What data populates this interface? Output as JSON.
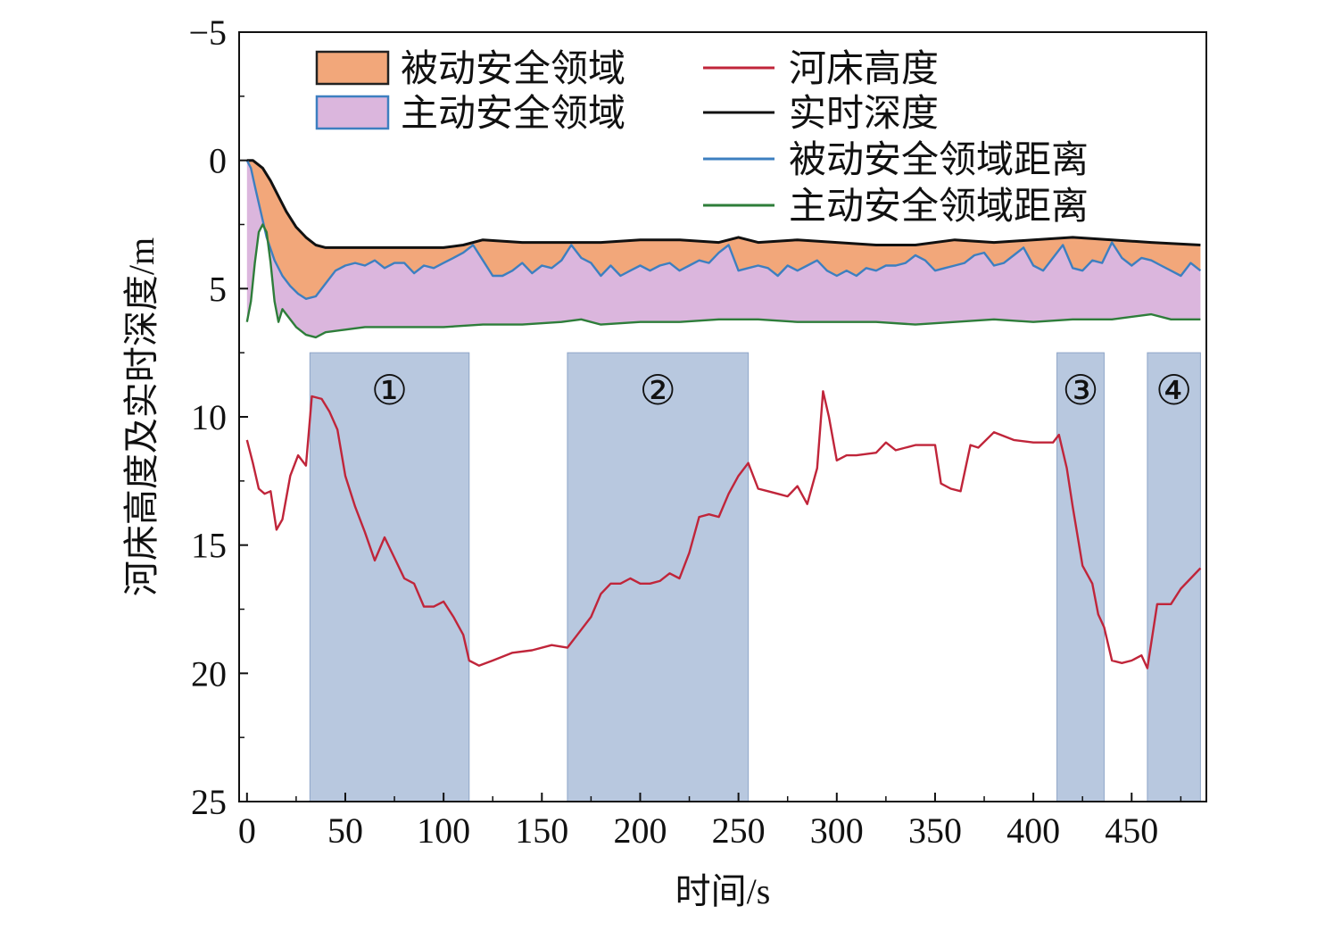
{
  "chart_data": {
    "type": "line",
    "xlabel": "时间/s",
    "ylabel": "河床高度及实时深度/m",
    "xlim": [
      -4,
      488
    ],
    "ylim": [
      -5,
      25
    ],
    "y_inverted": true,
    "xticks": [
      0,
      50,
      100,
      150,
      200,
      250,
      300,
      350,
      400,
      450
    ],
    "yticks": [
      -5,
      0,
      5,
      10,
      15,
      20,
      25
    ],
    "ytick_labels": [
      "−5",
      "0",
      "5",
      "10",
      "15",
      "20",
      "25"
    ],
    "grid": false,
    "legend_position": "top",
    "legend": [
      {
        "label": "被动安全领域",
        "kind": "patch",
        "fill": "#f2a77a",
        "stroke": "#222222"
      },
      {
        "label": "主动安全领域",
        "kind": "patch",
        "fill": "#dbb6dd",
        "stroke": "#3d7fc0"
      },
      {
        "label": "河床高度",
        "kind": "line",
        "color": "#c0253a"
      },
      {
        "label": "实时深度",
        "kind": "line",
        "color": "#111111"
      },
      {
        "label": "被动安全领域距离",
        "kind": "line",
        "color": "#3d7fc0"
      },
      {
        "label": "主动安全领域距离",
        "kind": "line",
        "color": "#2e7d3a"
      }
    ],
    "highlight_regions": [
      {
        "label": "①",
        "x": [
          32,
          113
        ],
        "y": [
          7.5,
          25
        ]
      },
      {
        "label": "②",
        "x": [
          163,
          255
        ],
        "y": [
          7.5,
          25
        ]
      },
      {
        "label": "③",
        "x": [
          412,
          436
        ],
        "y": [
          7.5,
          25
        ]
      },
      {
        "label": "④",
        "x": [
          458,
          485
        ],
        "y": [
          7.5,
          25
        ]
      }
    ],
    "series": [
      {
        "name": "河床高度",
        "color": "#c0253a",
        "x": [
          0,
          3,
          6,
          9,
          12,
          15,
          18,
          22,
          26,
          30,
          33,
          38,
          42,
          46,
          50,
          55,
          60,
          65,
          70,
          75,
          80,
          85,
          90,
          95,
          100,
          105,
          110,
          113,
          118,
          125,
          135,
          145,
          155,
          163,
          168,
          175,
          180,
          185,
          190,
          195,
          200,
          205,
          210,
          215,
          220,
          225,
          230,
          235,
          240,
          245,
          250,
          255,
          260,
          265,
          270,
          275,
          280,
          285,
          290,
          293,
          296,
          300,
          305,
          310,
          320,
          325,
          330,
          340,
          350,
          353,
          358,
          363,
          368,
          372,
          380,
          390,
          400,
          410,
          413,
          417,
          420,
          425,
          430,
          433,
          436,
          440,
          445,
          450,
          455,
          458,
          463,
          470,
          475,
          480,
          485
        ],
        "y": [
          10.9,
          11.8,
          12.8,
          13.0,
          12.9,
          14.4,
          14.0,
          12.3,
          11.5,
          11.9,
          9.2,
          9.3,
          9.8,
          10.5,
          12.3,
          13.5,
          14.5,
          15.6,
          14.7,
          15.5,
          16.3,
          16.5,
          17.4,
          17.4,
          17.2,
          17.8,
          18.5,
          19.5,
          19.7,
          19.5,
          19.2,
          19.1,
          18.9,
          19.0,
          18.5,
          17.8,
          16.9,
          16.5,
          16.5,
          16.3,
          16.5,
          16.5,
          16.4,
          16.1,
          16.3,
          15.3,
          13.9,
          13.8,
          13.9,
          13.0,
          12.3,
          11.8,
          12.8,
          12.9,
          13.0,
          13.1,
          12.7,
          13.4,
          12.0,
          9.0,
          10.0,
          11.7,
          11.5,
          11.5,
          11.4,
          11.0,
          11.3,
          11.1,
          11.1,
          12.6,
          12.8,
          12.9,
          11.1,
          11.2,
          10.6,
          10.9,
          11.0,
          11.0,
          10.7,
          12.0,
          13.5,
          15.8,
          16.5,
          17.7,
          18.2,
          19.5,
          19.6,
          19.5,
          19.3,
          19.8,
          17.3,
          17.3,
          16.7,
          16.3,
          15.9
        ]
      },
      {
        "name": "实时深度",
        "color": "#111111",
        "x": [
          0,
          3,
          8,
          12,
          16,
          20,
          25,
          30,
          35,
          40,
          45,
          50,
          60,
          80,
          100,
          110,
          120,
          140,
          160,
          180,
          200,
          220,
          240,
          250,
          260,
          280,
          300,
          320,
          340,
          360,
          380,
          400,
          420,
          440,
          460,
          485
        ],
        "y": [
          0.0,
          0.0,
          0.3,
          0.8,
          1.4,
          2.0,
          2.6,
          3.0,
          3.3,
          3.4,
          3.4,
          3.4,
          3.4,
          3.4,
          3.4,
          3.3,
          3.1,
          3.2,
          3.2,
          3.2,
          3.1,
          3.1,
          3.2,
          3.0,
          3.2,
          3.1,
          3.2,
          3.3,
          3.3,
          3.1,
          3.2,
          3.1,
          3.0,
          3.1,
          3.2,
          3.3
        ]
      },
      {
        "name": "被动安全领域距离",
        "color": "#3d7fc0",
        "x": [
          0,
          2,
          4,
          7,
          10,
          14,
          18,
          22,
          26,
          30,
          35,
          40,
          45,
          50,
          55,
          60,
          65,
          70,
          75,
          80,
          85,
          90,
          95,
          100,
          105,
          110,
          115,
          120,
          125,
          130,
          135,
          140,
          145,
          150,
          155,
          160,
          165,
          170,
          175,
          180,
          185,
          190,
          195,
          200,
          205,
          210,
          215,
          220,
          225,
          230,
          235,
          240,
          245,
          250,
          255,
          260,
          265,
          270,
          275,
          280,
          285,
          290,
          295,
          300,
          305,
          310,
          315,
          320,
          325,
          330,
          335,
          340,
          345,
          350,
          355,
          360,
          365,
          370,
          375,
          380,
          385,
          390,
          395,
          400,
          405,
          410,
          415,
          420,
          425,
          430,
          435,
          440,
          445,
          450,
          455,
          460,
          465,
          470,
          475,
          480,
          485
        ],
        "y": [
          0.0,
          0.3,
          1.0,
          2.0,
          3.0,
          3.9,
          4.5,
          4.9,
          5.2,
          5.4,
          5.3,
          4.8,
          4.3,
          4.1,
          4.0,
          4.1,
          3.9,
          4.2,
          4.0,
          4.0,
          4.4,
          4.1,
          4.2,
          4.0,
          3.8,
          3.6,
          3.3,
          3.9,
          4.5,
          4.5,
          4.3,
          4.0,
          4.4,
          4.1,
          4.2,
          3.9,
          3.3,
          3.8,
          4.0,
          4.5,
          4.1,
          4.5,
          4.3,
          4.1,
          4.3,
          4.1,
          4.0,
          4.3,
          4.1,
          3.9,
          4.0,
          3.6,
          3.3,
          4.3,
          4.2,
          4.1,
          4.2,
          4.5,
          4.1,
          4.3,
          4.1,
          3.9,
          4.3,
          4.5,
          4.3,
          4.5,
          4.2,
          4.3,
          4.1,
          4.1,
          4.0,
          3.7,
          3.9,
          4.3,
          4.2,
          4.1,
          4.0,
          3.7,
          3.6,
          4.1,
          4.0,
          3.7,
          3.4,
          4.1,
          4.3,
          3.8,
          3.3,
          4.2,
          4.3,
          3.9,
          4.0,
          3.2,
          3.8,
          4.1,
          3.8,
          3.9,
          4.1,
          4.3,
          4.5,
          4.0,
          4.3
        ]
      },
      {
        "name": "主动安全领域距离",
        "color": "#2e7d3a",
        "x": [
          0,
          2,
          4,
          6,
          8,
          10,
          12,
          14,
          16,
          18,
          20,
          25,
          30,
          35,
          40,
          50,
          60,
          80,
          100,
          120,
          140,
          160,
          170,
          180,
          200,
          220,
          240,
          260,
          280,
          300,
          320,
          340,
          360,
          380,
          400,
          420,
          440,
          460,
          470,
          485
        ],
        "y": [
          6.3,
          5.5,
          4.0,
          2.8,
          2.5,
          2.8,
          4.0,
          5.5,
          6.3,
          5.8,
          6.0,
          6.5,
          6.8,
          6.9,
          6.7,
          6.6,
          6.5,
          6.5,
          6.5,
          6.4,
          6.4,
          6.3,
          6.2,
          6.4,
          6.3,
          6.3,
          6.2,
          6.2,
          6.3,
          6.3,
          6.3,
          6.4,
          6.3,
          6.2,
          6.3,
          6.2,
          6.2,
          6.0,
          6.2,
          6.2
        ]
      }
    ]
  }
}
